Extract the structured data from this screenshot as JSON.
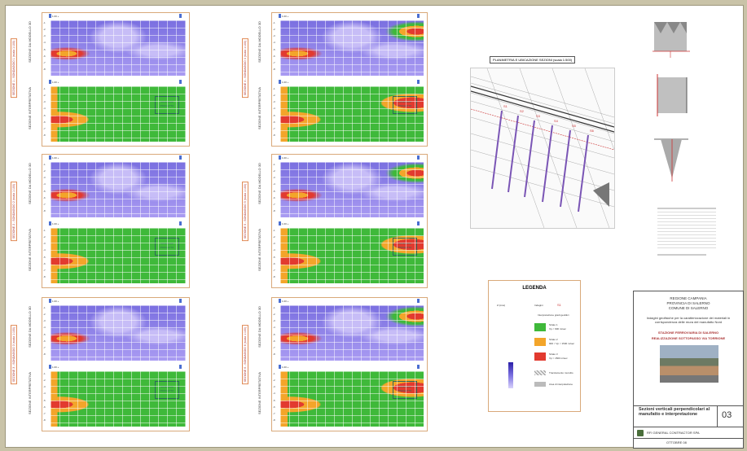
{
  "ruler_label": "1.00 +",
  "charts": [
    {
      "title_top": "SEZIONE DA MODELLO 3D",
      "title_bottom": "SEZIONE INTERPRETATIVA",
      "side_label": "SEZIONE 1 - SONDAGGIO 1 (scala 1:100)",
      "box": "SONDAGGI\nPROGETTO"
    },
    {
      "title_top": "SEZIONE DA MODELLO 3D",
      "title_bottom": "SEZIONE INTERPRETATIVA",
      "side_label": "SEZIONE 2 - SONDAGGIO 2 (scala 1:100)",
      "box": "SONDAGGI\nPROGETTO"
    },
    {
      "title_top": "SEZIONE DA MODELLO 3D",
      "title_bottom": "SEZIONE INTERPRETATIVA",
      "side_label": "SEZIONE 3 - SONDAGGIO 3 (scala 1:100)",
      "box": "SONDAGGI\nPROGETTO"
    },
    {
      "title_top": "SEZIONE DA MODELLO 3D",
      "title_bottom": "SEZIONE INTERPRETATIVA",
      "side_label": "SEZIONE 4 - SONDAGGIO 4 (scala 1:100)",
      "box": "SONDAGGI\nPROGETTO"
    },
    {
      "title_top": "SEZIONE DA MODELLO 3D",
      "title_bottom": "SEZIONE INTERPRETATIVA",
      "side_label": "SEZIONE 5 - SONDAGGIO 5 (scala 1:100)",
      "box": "SONDAGGI\nPROGETTO"
    },
    {
      "title_top": "SEZIONE DA MODELLO 3D",
      "title_bottom": "SEZIONE INTERPRETATIVA",
      "side_label": "SEZIONE 6 - SONDAGGIO 6 (scala 1:100)",
      "box": "SONDAGGI\nPROGETTO"
    }
  ],
  "y_ticks": [
    "-1",
    "-2",
    "-3",
    "-4",
    "-5",
    "-6",
    "-7",
    "-8"
  ],
  "map_title": "PLANIMETRIA E UBICAZIONE SEZIONI (scala 1:500)",
  "map_labels": [
    "S1",
    "S2",
    "S3",
    "S4",
    "S5",
    "S6"
  ],
  "legend": {
    "title": "LEGENDA",
    "z_label": "Z (mss)",
    "survey_label": "Indagini",
    "survey_code": "S1",
    "section_label": "Interpretazione gradi geolitici",
    "items": [
      {
        "label": "Strato 1",
        "desc": "Vp < 900 m/sec",
        "color": "#3fb93a"
      },
      {
        "label": "Strato 2",
        "desc": "900 < Vp < 1500 m/sec",
        "color": "#f3a52a"
      },
      {
        "label": "Strato 3",
        "desc": "Vp > 1500 m/sec",
        "color": "#e23a2f"
      }
    ],
    "note1": "Tracciamento murolito",
    "note2": "Area di interpolazione",
    "colors": {
      "purple": "#7a6fe0",
      "lilac": "#a99bf2",
      "green": "#3fb93a",
      "orange": "#f3a52a",
      "red": "#e23a2f"
    }
  },
  "title_block": {
    "header_lines": [
      "REGIONE CAMPANIA",
      "PROVINCIA DI SALERNO",
      "COMUNE DI SALERNO"
    ],
    "description": "Indagini geofisiche per la caratterizzazione dei materiali in corrispondenza delle mura del manufatto Nord",
    "project_lines": [
      "STAZIONE FERROVIARIA DI SALERNO",
      "REALIZZAZIONE SOTTOPASSO VIA TORRIONE"
    ],
    "drawing_title": "Sezioni verticali perpendicolari al manufatto e interpretazione",
    "sheet_number": "03",
    "company": "RFI GENERAL CONTRACTOR SPA",
    "footer": "OTTOBRE 08"
  }
}
